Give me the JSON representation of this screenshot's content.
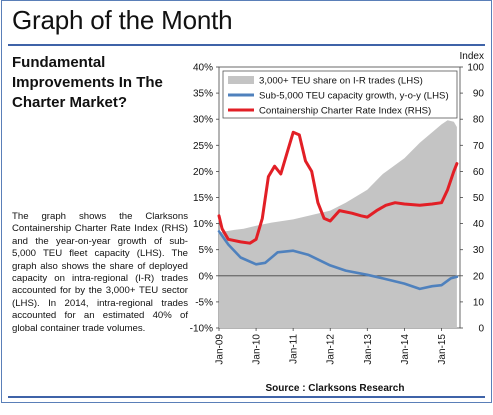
{
  "page": {
    "title": "Graph of the Month",
    "subtitle": "Fundamental Improvements In The Charter Market?",
    "description": "The graph shows the Clarksons Containership Charter Rate Index (RHS) and the year-on-year growth of sub-5,000 TEU fleet capacity (LHS). The graph also shows the share of deployed capacity on intra-regional (I-R) trades accounted for by the 3,000+ TEU sector (LHS). In 2014, intra-regional trades accounted for an estimated 40% of global container trade volumes.",
    "source": "Source : Clarksons Research"
  },
  "chart_data": {
    "type": "line",
    "title": "",
    "ylabel_left": "",
    "ylabel_right": "Index",
    "x_ticks": [
      "Jan-09",
      "Jan-10",
      "Jan-11",
      "Jan-12",
      "Jan-13",
      "Jan-14",
      "Jan-15"
    ],
    "xlim": [
      "Jan-09",
      "Jul-15"
    ],
    "ylim_left": [
      -10,
      40
    ],
    "ylim_right": [
      0,
      100
    ],
    "y_ticks_left": [
      "-10%",
      "-5%",
      "0%",
      "5%",
      "10%",
      "15%",
      "20%",
      "25%",
      "30%",
      "35%",
      "40%"
    ],
    "y_ticks_right": [
      "0",
      "10",
      "20",
      "30",
      "40",
      "50",
      "60",
      "70",
      "80",
      "90",
      "100"
    ],
    "legend_position": "top-right",
    "series": [
      {
        "name": "3,000+ TEU share on I-R trades (LHS)",
        "kind": "area",
        "axis": "left",
        "color": "#c4c4c4",
        "points": [
          [
            "2009-01",
            8.3
          ],
          [
            "2009-03",
            8.5
          ],
          [
            "2009-06",
            8.8
          ],
          [
            "2009-09",
            9.0
          ],
          [
            "2010-01",
            9.6
          ],
          [
            "2010-06",
            10.2
          ],
          [
            "2011-01",
            10.8
          ],
          [
            "2011-06",
            11.5
          ],
          [
            "2012-01",
            12.5
          ],
          [
            "2012-06",
            14.0
          ],
          [
            "2013-01",
            16.5
          ],
          [
            "2013-06",
            19.5
          ],
          [
            "2014-01",
            22.5
          ],
          [
            "2014-06",
            25.5
          ],
          [
            "2015-01",
            29.0
          ],
          [
            "2015-03",
            29.8
          ],
          [
            "2015-05",
            29.5
          ],
          [
            "2015-06",
            28.5
          ]
        ]
      },
      {
        "name": "Sub-5,000 TEU capacity growth, y-o-y (LHS)",
        "kind": "line",
        "axis": "left",
        "color": "#4f81bd",
        "points": [
          [
            "2009-01",
            8.5
          ],
          [
            "2009-04",
            6.0
          ],
          [
            "2009-08",
            3.5
          ],
          [
            "2010-01",
            2.2
          ],
          [
            "2010-04",
            2.5
          ],
          [
            "2010-08",
            4.5
          ],
          [
            "2011-01",
            4.8
          ],
          [
            "2011-06",
            4.0
          ],
          [
            "2012-01",
            2.0
          ],
          [
            "2012-06",
            1.0
          ],
          [
            "2013-01",
            0.2
          ],
          [
            "2013-06",
            -0.5
          ],
          [
            "2014-01",
            -1.5
          ],
          [
            "2014-06",
            -2.5
          ],
          [
            "2014-10",
            -2.0
          ],
          [
            "2015-01",
            -1.8
          ],
          [
            "2015-04",
            -0.5
          ],
          [
            "2015-06",
            -0.2
          ]
        ]
      },
      {
        "name": "Containership Charter Rate Index (RHS)",
        "kind": "line",
        "axis": "right",
        "color": "#e21f26",
        "points": [
          [
            "2009-01",
            43.0
          ],
          [
            "2009-02",
            38.0
          ],
          [
            "2009-04",
            34.0
          ],
          [
            "2009-08",
            33.0
          ],
          [
            "2009-11",
            32.5
          ],
          [
            "2010-01",
            34.0
          ],
          [
            "2010-03",
            42.0
          ],
          [
            "2010-05",
            58.0
          ],
          [
            "2010-07",
            62.0
          ],
          [
            "2010-09",
            59.0
          ],
          [
            "2010-11",
            67.0
          ],
          [
            "2011-01",
            75.0
          ],
          [
            "2011-03",
            74.0
          ],
          [
            "2011-05",
            64.0
          ],
          [
            "2011-07",
            60.0
          ],
          [
            "2011-09",
            48.0
          ],
          [
            "2011-11",
            42.0
          ],
          [
            "2012-01",
            41.0
          ],
          [
            "2012-04",
            45.0
          ],
          [
            "2012-08",
            44.0
          ],
          [
            "2012-11",
            43.0
          ],
          [
            "2013-01",
            42.5
          ],
          [
            "2013-04",
            45.0
          ],
          [
            "2013-07",
            47.0
          ],
          [
            "2013-10",
            48.0
          ],
          [
            "2014-01",
            47.5
          ],
          [
            "2014-06",
            47.0
          ],
          [
            "2014-10",
            47.5
          ],
          [
            "2015-01",
            48.0
          ],
          [
            "2015-03",
            53.0
          ],
          [
            "2015-05",
            60.0
          ],
          [
            "2015-06",
            63.0
          ]
        ]
      }
    ]
  }
}
